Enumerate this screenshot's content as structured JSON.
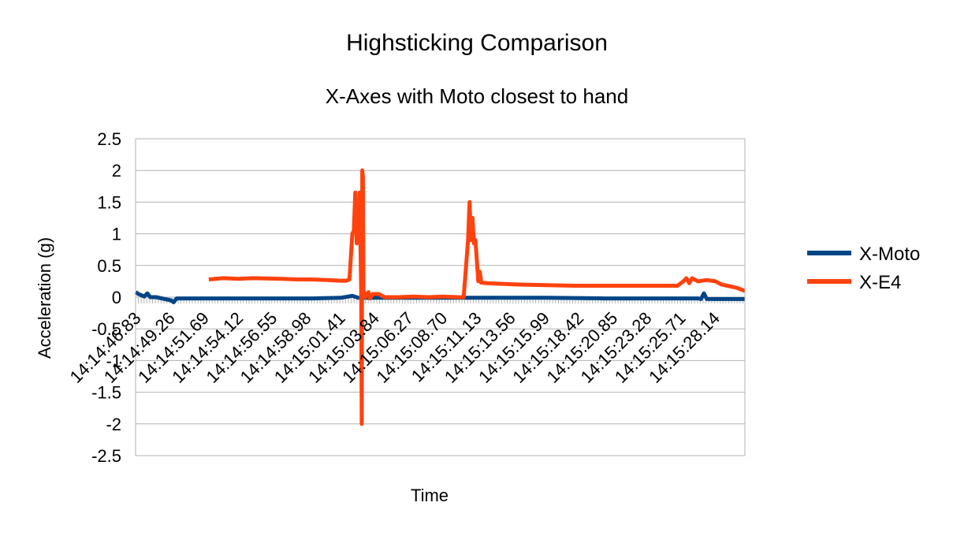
{
  "chart_data": {
    "type": "line",
    "title": "Highsticking Comparison",
    "subtitle": "X-Axes with Moto closest to hand",
    "xlabel": "Time",
    "ylabel": "Acceleration (g)",
    "ylim": [
      -2.5,
      2.5
    ],
    "yticks": [
      "2.5",
      "2",
      "1.5",
      "1",
      "0.5",
      "0",
      "-0.5",
      "-1",
      "-1.5",
      "-2",
      "-2.5"
    ],
    "x_tick_labels": [
      "14:14:46.83",
      "14:14:49.26",
      "14:14:51.69",
      "14:14:54.12",
      "14:14:56.55",
      "14:14:58.98",
      "14:15:01.41",
      "14:15:03.84",
      "14:15:06.27",
      "14:15:08.70",
      "14:15:11.13",
      "14:15:13.56",
      "14:15:15.99",
      "14:15:18.42",
      "14:15:20.85",
      "14:15:23.28",
      "14:15:25.71",
      "14:15:28.14"
    ],
    "legend_position": "right",
    "grid": true,
    "series": [
      {
        "name": "X-Moto",
        "color": "#004586",
        "points": [
          [
            0,
            0.08
          ],
          [
            0.1,
            0.05
          ],
          [
            0.2,
            0.03
          ],
          [
            0.3,
            0.01
          ],
          [
            0.4,
            0.06
          ],
          [
            0.5,
            0.0
          ],
          [
            0.7,
            0.0
          ],
          [
            1.2,
            -0.05
          ],
          [
            1.3,
            -0.08
          ],
          [
            1.4,
            -0.02
          ],
          [
            2,
            -0.02
          ],
          [
            4,
            -0.02
          ],
          [
            6,
            -0.02
          ],
          [
            7,
            -0.01
          ],
          [
            7.4,
            0.02
          ],
          [
            7.6,
            -0.01
          ],
          [
            8,
            -0.01
          ],
          [
            9,
            -0.01
          ],
          [
            10,
            -0.01
          ],
          [
            11,
            -0.01
          ],
          [
            12,
            -0.01
          ],
          [
            14,
            -0.01
          ],
          [
            16,
            -0.02
          ],
          [
            18,
            -0.02
          ],
          [
            19.2,
            -0.02
          ],
          [
            19.3,
            -0.03
          ],
          [
            19.4,
            0.06
          ],
          [
            19.5,
            -0.03
          ],
          [
            20.8,
            -0.03
          ]
        ]
      },
      {
        "name": "X-E4",
        "color": "#ff420e",
        "points": [
          [
            2.5,
            0.28
          ],
          [
            3,
            0.3
          ],
          [
            3.5,
            0.29
          ],
          [
            4,
            0.3
          ],
          [
            5,
            0.29
          ],
          [
            5.5,
            0.28
          ],
          [
            6,
            0.28
          ],
          [
            6.5,
            0.27
          ],
          [
            7,
            0.26
          ],
          [
            7.2,
            0.26
          ],
          [
            7.3,
            0.28
          ],
          [
            7.4,
            1.0
          ],
          [
            7.45,
            1.05
          ],
          [
            7.5,
            1.65
          ],
          [
            7.55,
            0.85
          ],
          [
            7.6,
            0.9
          ],
          [
            7.65,
            1.65
          ],
          [
            7.7,
            0.1
          ],
          [
            7.72,
            -2.0
          ],
          [
            7.74,
            2.0
          ],
          [
            7.76,
            1.9
          ],
          [
            7.78,
            0.1
          ],
          [
            7.85,
            0.0
          ],
          [
            7.95,
            0.08
          ],
          [
            8,
            -0.02
          ],
          [
            8.1,
            0.05
          ],
          [
            8.3,
            0.05
          ],
          [
            8.5,
            0.0
          ],
          [
            9,
            0.0
          ],
          [
            9.5,
            0.01
          ],
          [
            10,
            0.0
          ],
          [
            10.5,
            0.01
          ],
          [
            11,
            0.0
          ],
          [
            11.2,
            0.0
          ],
          [
            11.25,
            0.3
          ],
          [
            11.35,
            0.9
          ],
          [
            11.4,
            1.5
          ],
          [
            11.45,
            0.9
          ],
          [
            11.5,
            1.25
          ],
          [
            11.55,
            0.85
          ],
          [
            11.6,
            0.9
          ],
          [
            11.7,
            0.25
          ],
          [
            11.75,
            0.4
          ],
          [
            11.8,
            0.23
          ],
          [
            12,
            0.22
          ],
          [
            13,
            0.2
          ],
          [
            14,
            0.19
          ],
          [
            15,
            0.18
          ],
          [
            16,
            0.18
          ],
          [
            17,
            0.18
          ],
          [
            18,
            0.18
          ],
          [
            18.5,
            0.18
          ],
          [
            18.7,
            0.25
          ],
          [
            18.8,
            0.3
          ],
          [
            18.9,
            0.22
          ],
          [
            19.0,
            0.3
          ],
          [
            19.2,
            0.25
          ],
          [
            19.5,
            0.27
          ],
          [
            19.8,
            0.25
          ],
          [
            20.0,
            0.2
          ],
          [
            20.2,
            0.18
          ],
          [
            20.5,
            0.15
          ],
          [
            20.8,
            0.1
          ]
        ]
      }
    ]
  }
}
